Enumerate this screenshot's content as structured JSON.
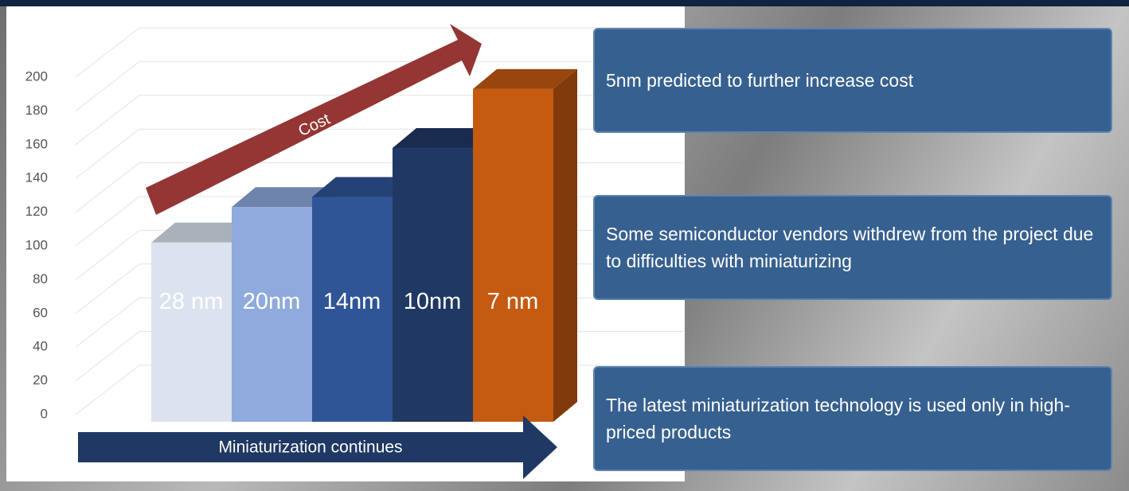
{
  "chart_data": {
    "type": "bar",
    "categories": [
      "28 nm",
      "20nm",
      "14nm",
      "10nm",
      "7 nm"
    ],
    "values": [
      102,
      123,
      129,
      158,
      193
    ],
    "colors": [
      "#dce3ef",
      "#8faadc",
      "#2f5597",
      "#203864",
      "#c55a11"
    ],
    "ylim": [
      0,
      200
    ],
    "yticks": [
      0,
      20,
      40,
      60,
      80,
      100,
      120,
      140,
      160,
      180,
      200
    ],
    "grid": true,
    "annotations": [
      "Cost",
      "Miniaturization continues"
    ]
  },
  "notes": [
    "5nm predicted to further increase cost",
    "Some semiconductor vendors withdrew from the project due to difficulties with miniaturizing",
    "The latest miniaturization technology is used only in high-priced products"
  ]
}
